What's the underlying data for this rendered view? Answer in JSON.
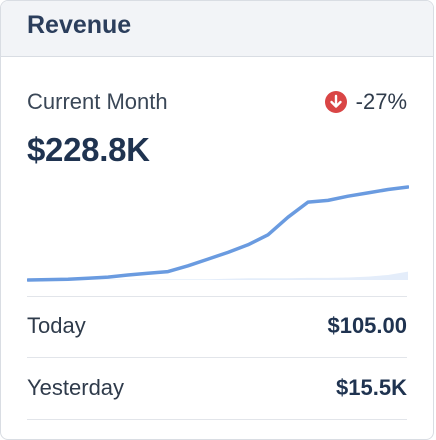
{
  "card": {
    "title": "Revenue",
    "metric_label": "Current Month",
    "change": "-27%",
    "change_icon": "arrow-down-circle-icon",
    "value": "$228.8K"
  },
  "sparkline": {
    "current": [
      0.0,
      0.005,
      0.01,
      0.02,
      0.035,
      0.06,
      0.08,
      0.1,
      0.17,
      0.25,
      0.33,
      0.42,
      0.54,
      0.75,
      0.93,
      0.95,
      1.0,
      1.04,
      1.08,
      1.11
    ],
    "previous": [
      0.0,
      0.0,
      0.0,
      0.0,
      0.005,
      0.005,
      0.005,
      0.01,
      0.01,
      0.01,
      0.015,
      0.02,
      0.02,
      0.02,
      0.025,
      0.025,
      0.03,
      0.04,
      0.06,
      0.1
    ]
  },
  "stats": [
    {
      "label": "Today",
      "value": "$105.00"
    },
    {
      "label": "Yesterday",
      "value": "$15.5K"
    }
  ],
  "colors": {
    "line": "#6a9be0",
    "area": "#e4edfa",
    "down": "#d94545"
  }
}
